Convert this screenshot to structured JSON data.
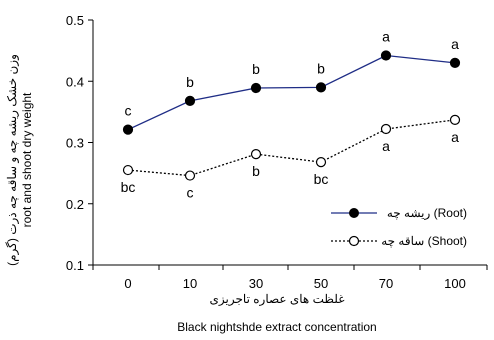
{
  "chart_data": {
    "type": "line",
    "categories": [
      "0",
      "10",
      "30",
      "50",
      "70",
      "100"
    ],
    "ylim": [
      0.1,
      0.5
    ],
    "yticks": [
      "0.1",
      "0.2",
      "0.3",
      "0.4",
      "0.5"
    ],
    "ylabel_persian": "وزن خشک ریشه چه و ساقه چه ذرت (گرم)",
    "ylabel": "root and shoot dry weight",
    "xlabel_persian": "غلظت های عصاره تاجریزی",
    "xlabel": "Black nightshde extract concentration",
    "grid": false,
    "legend_position": "right",
    "series": [
      {
        "name": "ریشه چه (Root)",
        "marker": "filled-circle",
        "line": "solid",
        "color": "#1f2d86",
        "values": [
          0.321,
          0.368,
          0.389,
          0.39,
          0.442,
          0.43
        ],
        "letters": [
          "c",
          "b",
          "b",
          "b",
          "a",
          "a"
        ]
      },
      {
        "name": "ساقه چه (Shoot)",
        "marker": "open-circle",
        "line": "dotted",
        "color": "#000000",
        "values": [
          0.255,
          0.246,
          0.281,
          0.268,
          0.322,
          0.337
        ],
        "letters": [
          "bc",
          "c",
          "b",
          "bc",
          "a",
          "a"
        ]
      }
    ]
  }
}
